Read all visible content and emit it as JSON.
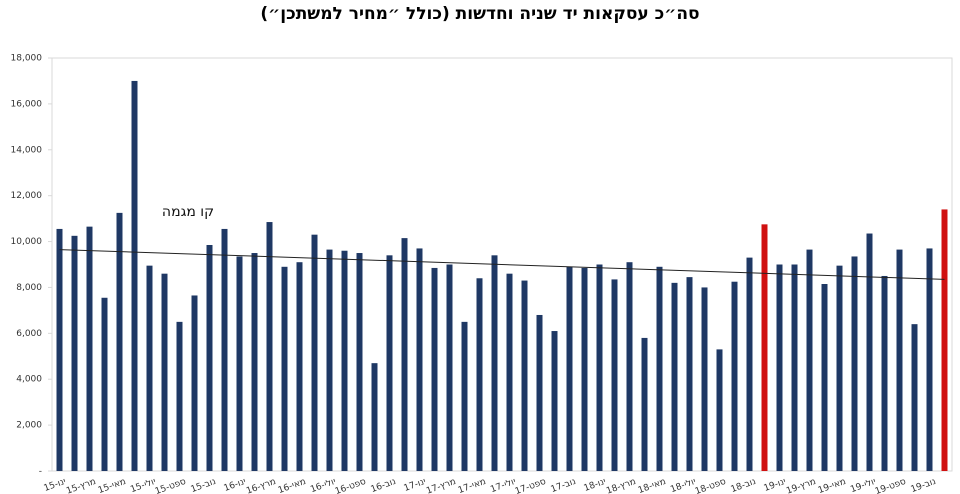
{
  "chart_data": {
    "type": "bar",
    "title": "סה״כ עסקאות יד שניה וחדשות (כולל ״מחיר למשתכן״)",
    "categories": [
      "ינו-15",
      null,
      "מרץ-15",
      null,
      "מאי-15",
      null,
      "יולי-15",
      null,
      "ספט-15",
      null,
      "נוב-15",
      null,
      "ינו-16",
      null,
      "מרץ-16",
      null,
      "מאי-16",
      null,
      "יולי-16",
      null,
      "ספט-16",
      null,
      "נוב-16",
      null,
      "ינו-17",
      null,
      "מרץ-17",
      null,
      "מאי-17",
      null,
      "יולי-17",
      null,
      "ספט-17",
      null,
      "נוב-17",
      null,
      "ינו-18",
      null,
      "מרץ-18",
      null,
      "מאי-18",
      null,
      "יולי-18",
      null,
      "ספט-18",
      null,
      "נוב-18",
      null,
      "ינו-19",
      null,
      "מרץ-19",
      null,
      "מאי-19",
      null,
      "יולי-19",
      null,
      "ספט-19",
      null,
      "נוב-19",
      null
    ],
    "values": [
      10550,
      10250,
      10650,
      7550,
      11250,
      17000,
      8950,
      8600,
      6500,
      7650,
      9850,
      10550,
      9350,
      9500,
      10850,
      8900,
      9100,
      10300,
      9650,
      9600,
      9500,
      4700,
      9400,
      10150,
      9700,
      8850,
      9000,
      6500,
      8400,
      9400,
      8600,
      8300,
      6800,
      6100,
      8900,
      8850,
      9000,
      8350,
      9100,
      5800,
      8900,
      8200,
      8450,
      8000,
      5300,
      8250,
      9300,
      10750,
      9000,
      9000,
      9650,
      8150,
      8950,
      9350,
      10350,
      8500,
      9650,
      6400,
      9700,
      11400
    ],
    "color": "#1f3864",
    "highlight": {
      "color": "#d01010",
      "indices": [
        47,
        59
      ]
    },
    "trendline": {
      "label": "קו מגמה",
      "values": [
        9650,
        8350
      ],
      "color": "#222222"
    },
    "ylim": [
      0,
      18000
    ],
    "yticks": [
      {
        "value": 0,
        "label": "-"
      },
      {
        "value": 2000,
        "label": "2,000"
      },
      {
        "value": 4000,
        "label": "4,000"
      },
      {
        "value": 6000,
        "label": "6,000"
      },
      {
        "value": 8000,
        "label": "8,000"
      },
      {
        "value": 10000,
        "label": "10,000"
      },
      {
        "value": 12000,
        "label": "12,000"
      },
      {
        "value": 14000,
        "label": "14,000"
      },
      {
        "value": 16000,
        "label": "16,000"
      },
      {
        "value": 18000,
        "label": "18,000"
      }
    ],
    "grid": false
  }
}
